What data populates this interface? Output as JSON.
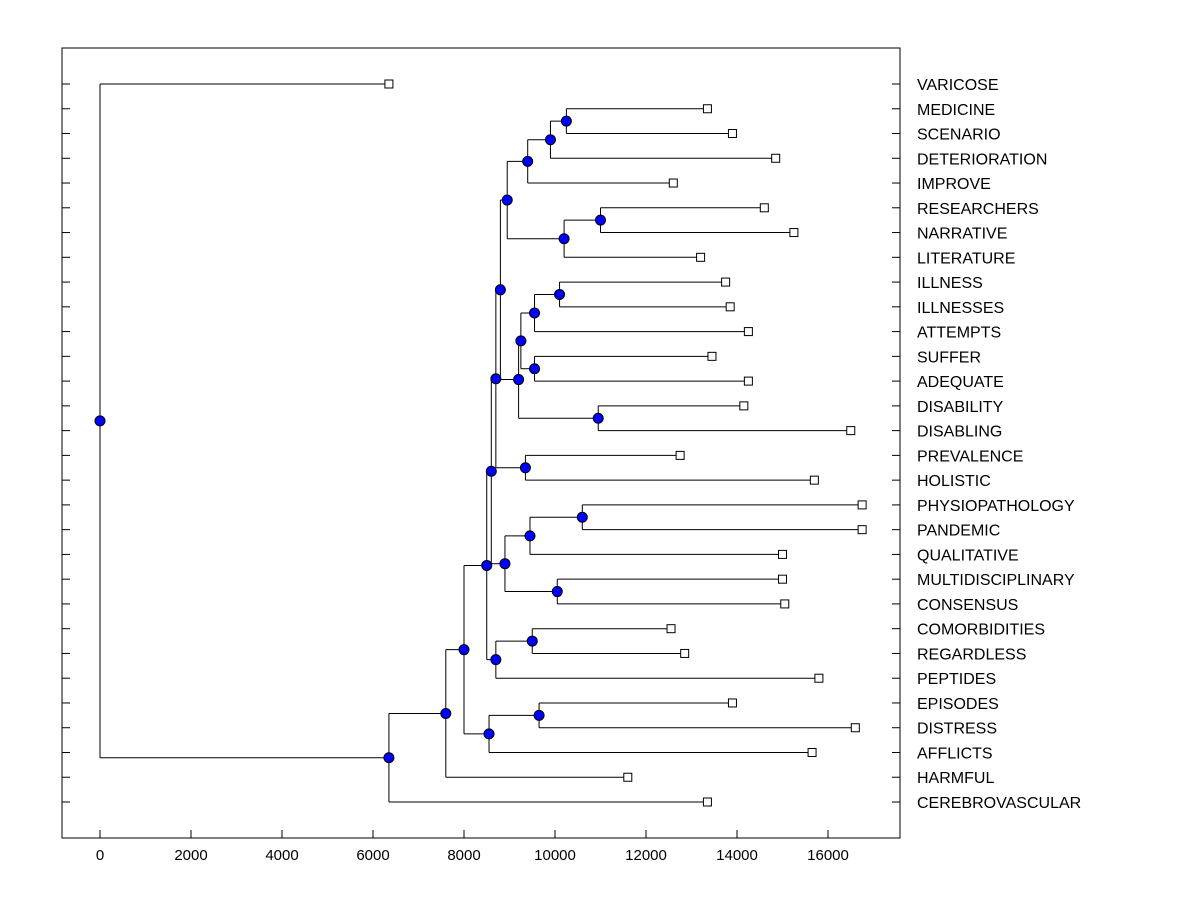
{
  "chart_data": {
    "type": "dendrogram",
    "title": "",
    "xlabel": "",
    "ylabel": "",
    "xlim": [
      -800,
      17500
    ],
    "xticks": [
      0,
      2000,
      4000,
      6000,
      8000,
      10000,
      12000,
      14000,
      16000
    ],
    "xtick_labels": [
      "0",
      "2000",
      "4000",
      "6000",
      "8000",
      "10000",
      "12000",
      "14000",
      "16000"
    ],
    "colors": {
      "node": "#0000ff",
      "line": "#000000",
      "leaf": "#ffffff"
    },
    "leaves": [
      {
        "label": "VARICOSE",
        "value": 6350
      },
      {
        "label": "MEDICINE",
        "value": 13350
      },
      {
        "label": "SCENARIO",
        "value": 13900
      },
      {
        "label": "DETERIORATION",
        "value": 14850
      },
      {
        "label": "IMPROVE",
        "value": 12600
      },
      {
        "label": "RESEARCHERS",
        "value": 14600
      },
      {
        "label": "NARRATIVE",
        "value": 15250
      },
      {
        "label": "LITERATURE",
        "value": 13200
      },
      {
        "label": "ILLNESS",
        "value": 13750
      },
      {
        "label": "ILLNESSES",
        "value": 13850
      },
      {
        "label": "ATTEMPTS",
        "value": 14250
      },
      {
        "label": "SUFFER",
        "value": 13450
      },
      {
        "label": "ADEQUATE",
        "value": 14250
      },
      {
        "label": "DISABILITY",
        "value": 14150
      },
      {
        "label": "DISABLING",
        "value": 16500
      },
      {
        "label": "PREVALENCE",
        "value": 12750
      },
      {
        "label": "HOLISTIC",
        "value": 15700
      },
      {
        "label": "PHYSIOPATHOLOGY",
        "value": 16750
      },
      {
        "label": "PANDEMIC",
        "value": 16750
      },
      {
        "label": "QUALITATIVE",
        "value": 15000
      },
      {
        "label": "MULTIDISCIPLINARY",
        "value": 15000
      },
      {
        "label": "CONSENSUS",
        "value": 15050
      },
      {
        "label": "COMORBIDITIES",
        "value": 12550
      },
      {
        "label": "REGARDLESS",
        "value": 12850
      },
      {
        "label": "PEPTIDES",
        "value": 15800
      },
      {
        "label": "EPISODES",
        "value": 13900
      },
      {
        "label": "DISTRESS",
        "value": 16600
      },
      {
        "label": "AFFLICTS",
        "value": 15650
      },
      {
        "label": "HARMFUL",
        "value": 11600
      },
      {
        "label": "CEREBROVASCULAR",
        "value": 13350
      }
    ],
    "nodes": [
      {
        "id": "n1",
        "value": 10250,
        "children": [
          "MEDICINE",
          "SCENARIO"
        ]
      },
      {
        "id": "n2",
        "value": 9900,
        "children": [
          "n1",
          "DETERIORATION"
        ]
      },
      {
        "id": "n3",
        "value": 9400,
        "children": [
          "n2",
          "IMPROVE"
        ]
      },
      {
        "id": "n4",
        "value": 11000,
        "children": [
          "RESEARCHERS",
          "NARRATIVE"
        ]
      },
      {
        "id": "n5",
        "value": 10200,
        "children": [
          "n4",
          "LITERATURE"
        ]
      },
      {
        "id": "n6",
        "value": 8950,
        "children": [
          "n3",
          "n5"
        ]
      },
      {
        "id": "n7",
        "value": 10100,
        "children": [
          "ILLNESS",
          "ILLNESSES"
        ]
      },
      {
        "id": "n8",
        "value": 9550,
        "children": [
          "n7",
          "ATTEMPTS"
        ]
      },
      {
        "id": "n9",
        "value": 9550,
        "children": [
          "SUFFER",
          "ADEQUATE"
        ]
      },
      {
        "id": "n10",
        "value": 9250,
        "children": [
          "n8",
          "n9"
        ]
      },
      {
        "id": "n11",
        "value": 10950,
        "children": [
          "DISABILITY",
          "DISABLING"
        ]
      },
      {
        "id": "n12",
        "value": 9200,
        "children": [
          "n10",
          "n11"
        ]
      },
      {
        "id": "n13",
        "value": 8800,
        "children": [
          "n6",
          "n12"
        ]
      },
      {
        "id": "n14",
        "value": 9350,
        "children": [
          "PREVALENCE",
          "HOLISTIC"
        ]
      },
      {
        "id": "n15",
        "value": 8700,
        "children": [
          "n13",
          "n14"
        ]
      },
      {
        "id": "n16",
        "value": 10600,
        "children": [
          "PHYSIOPATHOLOGY",
          "PANDEMIC"
        ]
      },
      {
        "id": "n17",
        "value": 9450,
        "children": [
          "n16",
          "QUALITATIVE"
        ]
      },
      {
        "id": "n18",
        "value": 10050,
        "children": [
          "MULTIDISCIPLINARY",
          "CONSENSUS"
        ]
      },
      {
        "id": "n19",
        "value": 8900,
        "children": [
          "n17",
          "n18"
        ]
      },
      {
        "id": "n20",
        "value": 8600,
        "children": [
          "n15",
          "n19"
        ]
      },
      {
        "id": "n21",
        "value": 9500,
        "children": [
          "COMORBIDITIES",
          "REGARDLESS"
        ]
      },
      {
        "id": "n22",
        "value": 8700,
        "children": [
          "n21",
          "PEPTIDES"
        ]
      },
      {
        "id": "n23",
        "value": 8500,
        "children": [
          "n20",
          "n22"
        ]
      },
      {
        "id": "n24",
        "value": 9650,
        "children": [
          "EPISODES",
          "DISTRESS"
        ]
      },
      {
        "id": "n25",
        "value": 8550,
        "children": [
          "n24",
          "AFFLICTS"
        ]
      },
      {
        "id": "n26",
        "value": 8000,
        "children": [
          "n23",
          "n25"
        ]
      },
      {
        "id": "n27",
        "value": 7600,
        "children": [
          "n26",
          "HARMFUL"
        ]
      },
      {
        "id": "n28",
        "value": 6350,
        "children": [
          "n27",
          "CEREBROVASCULAR"
        ]
      },
      {
        "id": "n29",
        "value": 0,
        "children": [
          "VARICOSE",
          "n28"
        ]
      }
    ]
  }
}
